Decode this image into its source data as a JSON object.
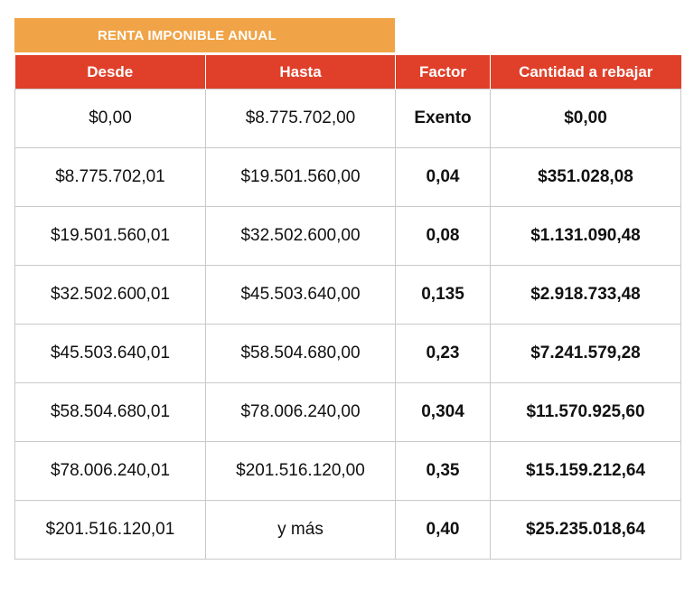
{
  "banner": {
    "title": "RENTA IMPONIBLE ANUAL"
  },
  "colors": {
    "banner": "#f0a447",
    "header": "#e0402a",
    "border": "#c9c9c9"
  },
  "table": {
    "headers": [
      "Desde",
      "Hasta",
      "Factor",
      "Cantidad a rebajar"
    ],
    "rows": [
      [
        "$0,00",
        "$8.775.702,00",
        "Exento",
        "$0,00"
      ],
      [
        "$8.775.702,01",
        "$19.501.560,00",
        "0,04",
        "$351.028,08"
      ],
      [
        "$19.501.560,01",
        "$32.502.600,00",
        "0,08",
        "$1.131.090,48"
      ],
      [
        "$32.502.600,01",
        "$45.503.640,00",
        "0,135",
        "$2.918.733,48"
      ],
      [
        "$45.503.640,01",
        "$58.504.680,00",
        "0,23",
        "$7.241.579,28"
      ],
      [
        "$58.504.680,01",
        "$78.006.240,00",
        "0,304",
        "$11.570.925,60"
      ],
      [
        "$78.006.240,01",
        "$201.516.120,00",
        "0,35",
        "$15.159.212,64"
      ],
      [
        "$201.516.120,01",
        "y más",
        "0,40",
        "$25.235.018,64"
      ]
    ]
  }
}
